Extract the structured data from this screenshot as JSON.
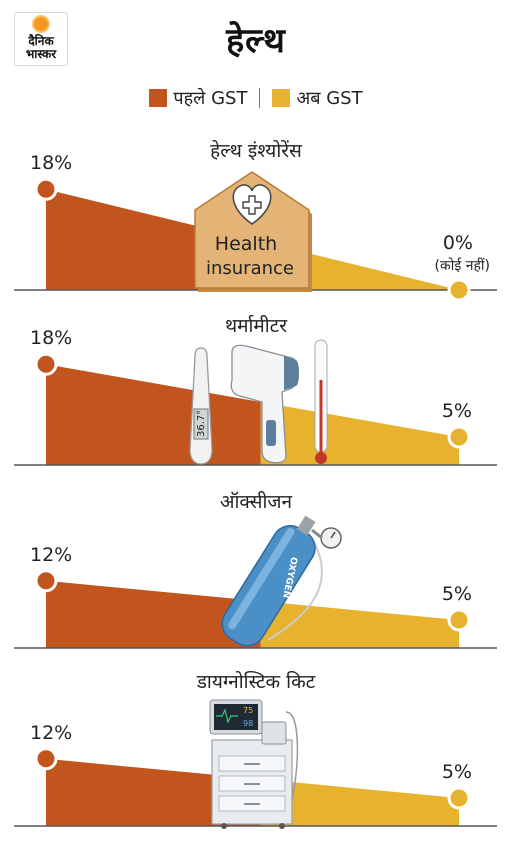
{
  "brand": {
    "line1": "दैनिक",
    "line2": "भास्कर"
  },
  "title": "हेल्थ",
  "legend": {
    "before": "पहले GST",
    "after": "अब GST"
  },
  "colors": {
    "before": "#c2541d",
    "after": "#e7b32f",
    "axis": "#555555"
  },
  "chart_data": [
    {
      "type": "area",
      "category": "हेल्थ इंश्योरेंस",
      "series": [
        {
          "name": "पहले GST",
          "value": 18,
          "label": "18%"
        },
        {
          "name": "अब GST",
          "value": 0,
          "label": "0%",
          "note": "(कोई नहीं)"
        }
      ],
      "illustration": "health-insurance-house-icon",
      "illustration_text": "Health insurance"
    },
    {
      "type": "area",
      "category": "थर्मामीटर",
      "series": [
        {
          "name": "पहले GST",
          "value": 18,
          "label": "18%"
        },
        {
          "name": "अब GST",
          "value": 5,
          "label": "5%"
        }
      ],
      "illustration": "thermometer-icon",
      "display_text": "36.7°"
    },
    {
      "type": "area",
      "category": "ऑक्सीजन",
      "series": [
        {
          "name": "पहले GST",
          "value": 12,
          "label": "12%"
        },
        {
          "name": "अब GST",
          "value": 5,
          "label": "5%"
        }
      ],
      "illustration": "oxygen-cylinder-icon",
      "display_text": "OXYGEN"
    },
    {
      "type": "area",
      "category": "डायग्नोस्टिक किट",
      "series": [
        {
          "name": "पहले GST",
          "value": 12,
          "label": "12%"
        },
        {
          "name": "अब GST",
          "value": 5,
          "label": "5%"
        }
      ],
      "illustration": "diagnostic-machine-icon",
      "display_values": [
        "75",
        "98"
      ]
    }
  ]
}
